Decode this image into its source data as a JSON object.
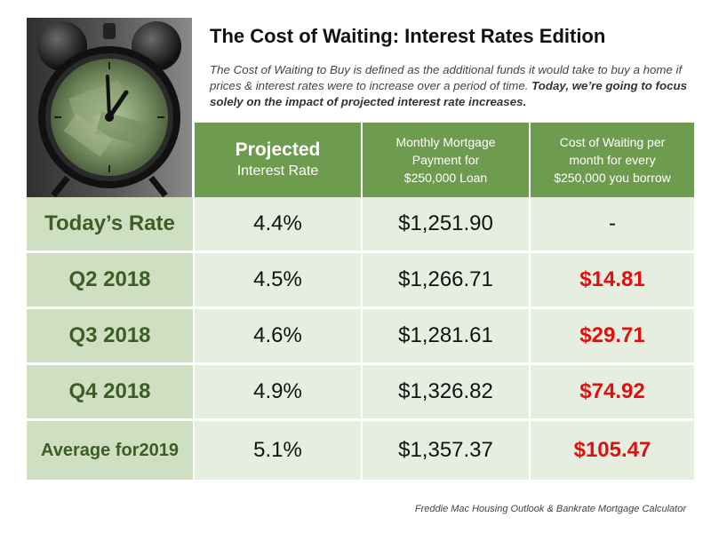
{
  "title": "The Cost of Waiting: Interest Rates Edition",
  "description": {
    "normal": "The Cost of Waiting to Buy is defined as the additional funds it would take to buy a home if prices & interest rates were to increase over a period of time.",
    "bold": "Today, we’re going to focus solely on the impact of projected interest rate increases."
  },
  "table": {
    "headers": [
      {
        "line1": "Projected",
        "line2": "Interest Rate"
      },
      {
        "line1": "Monthly Mortgage",
        "line2": "Payment for",
        "line3": "$250,000 Loan"
      },
      {
        "line1": "Cost of Waiting per",
        "line2": "month for every",
        "line3": "$250,000 you borrow"
      }
    ],
    "rows": [
      {
        "label": "Today’s Rate",
        "rate": "4.4%",
        "payment": "$1,251.90",
        "cost": "-"
      },
      {
        "label": "Q2 2018",
        "rate": "4.5%",
        "payment": "$1,266.71",
        "cost": "$14.81"
      },
      {
        "label": "Q3 2018",
        "rate": "4.6%",
        "payment": "$1,281.61",
        "cost": "$29.71"
      },
      {
        "label": "Q4 2018",
        "rate": "4.9%",
        "payment": "$1,326.82",
        "cost": "$74.92"
      },
      {
        "label_line1": "Average for",
        "label_line2": "2019",
        "rate": "5.1%",
        "payment": "$1,357.37",
        "cost": "$105.47"
      }
    ]
  },
  "source": "Freddie Mac Housing Outlook & Bankrate Mortgage Calculator",
  "colors": {
    "header_green": "#6e9c4e",
    "row_dark": "#cfe0c2",
    "row_light": "#e6efdf",
    "label_green": "#3c5e26",
    "cost_red": "#e01010"
  },
  "image": {
    "icon": "alarm-clock-icon"
  }
}
